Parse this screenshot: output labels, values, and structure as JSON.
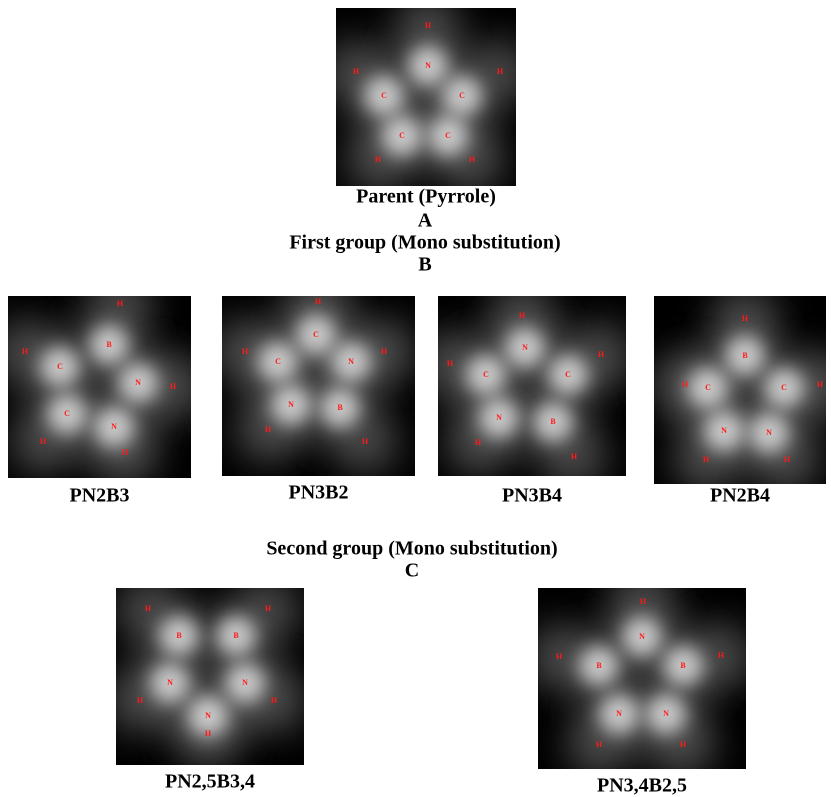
{
  "panels": [
    {
      "caption": "Parent (Pyrrole)",
      "atoms": [
        "H",
        "N",
        "H",
        "H",
        "C",
        "C",
        "C",
        "C",
        "H",
        "H"
      ]
    },
    {
      "caption": "PN2B3",
      "atoms": [
        "H",
        "H",
        "C",
        "B",
        "N",
        "H",
        "C",
        "N",
        "H",
        "H"
      ]
    },
    {
      "caption": "PN3B2",
      "atoms": [
        "H",
        "C",
        "C",
        "H",
        "N",
        "H",
        "N",
        "B",
        "H",
        "H"
      ]
    },
    {
      "caption": "PN3B4",
      "atoms": [
        "H",
        "N",
        "H",
        "C",
        "H",
        "C",
        "N",
        "B",
        "H",
        "H"
      ]
    },
    {
      "caption": "PN2B4",
      "atoms": [
        "H",
        "B",
        "H",
        "C",
        "C",
        "H",
        "N",
        "N",
        "H",
        "H"
      ]
    },
    {
      "caption": "PN2,5B3,4",
      "atoms": [
        "H",
        "H",
        "B",
        "B",
        "N",
        "N",
        "H",
        "H",
        "N",
        "H"
      ]
    },
    {
      "caption": "PN3,4B2,5",
      "atoms": [
        "H",
        "N",
        "H",
        "H",
        "B",
        "B",
        "N",
        "N",
        "H",
        "H"
      ]
    }
  ],
  "labels": {
    "a": "A",
    "group1": "First group (Mono substitution)",
    "b": "B",
    "group2": "Second group (Mono substitution)",
    "c": "C"
  }
}
